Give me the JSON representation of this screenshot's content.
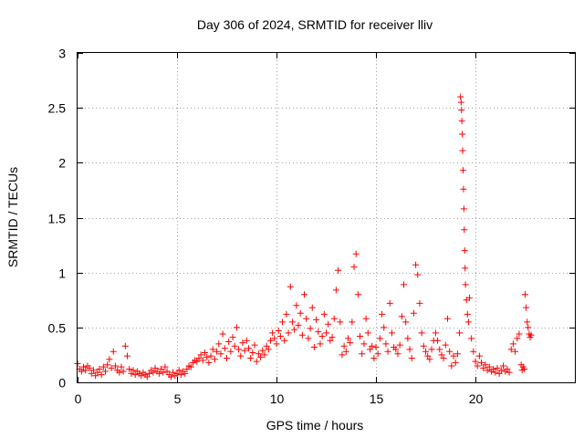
{
  "chart_data": {
    "type": "scatter",
    "title": "Day 306 of 2024, SRMTID for receiver lliv",
    "xlabel": "GPS time / hours",
    "ylabel": "SRMTID / TECUs",
    "xlim": [
      0,
      25
    ],
    "ylim": [
      0,
      3
    ],
    "xticks": [
      0,
      5,
      10,
      15,
      20
    ],
    "xtick_labels": [
      "0",
      "5",
      "10",
      "15",
      "20"
    ],
    "yticks": [
      0,
      0.5,
      1,
      1.5,
      2,
      2.5,
      3
    ],
    "ytick_labels": [
      "0",
      "0.5",
      "1",
      "1.5",
      "2",
      "2.5",
      "3"
    ],
    "grid": true,
    "marker": "+",
    "series": [
      {
        "name": "SRMTID",
        "color": "#ff0000",
        "points": [
          [
            0.0,
            0.17
          ],
          [
            0.1,
            0.12
          ],
          [
            0.2,
            0.1
          ],
          [
            0.3,
            0.14
          ],
          [
            0.4,
            0.11
          ],
          [
            0.5,
            0.15
          ],
          [
            0.6,
            0.13
          ],
          [
            0.7,
            0.08
          ],
          [
            0.8,
            0.11
          ],
          [
            0.9,
            0.06
          ],
          [
            1.0,
            0.09
          ],
          [
            1.1,
            0.12
          ],
          [
            1.2,
            0.07
          ],
          [
            1.3,
            0.14
          ],
          [
            1.4,
            0.1
          ],
          [
            1.5,
            0.16
          ],
          [
            1.6,
            0.21
          ],
          [
            1.7,
            0.13
          ],
          [
            1.8,
            0.28
          ],
          [
            1.9,
            0.15
          ],
          [
            2.0,
            0.11
          ],
          [
            2.1,
            0.09
          ],
          [
            2.2,
            0.14
          ],
          [
            2.3,
            0.1
          ],
          [
            2.4,
            0.33
          ],
          [
            2.5,
            0.24
          ],
          [
            2.6,
            0.12
          ],
          [
            2.7,
            0.08
          ],
          [
            2.8,
            0.11
          ],
          [
            2.9,
            0.07
          ],
          [
            3.0,
            0.1
          ],
          [
            3.1,
            0.08
          ],
          [
            3.2,
            0.06
          ],
          [
            3.3,
            0.09
          ],
          [
            3.4,
            0.07
          ],
          [
            3.5,
            0.05
          ],
          [
            3.6,
            0.08
          ],
          [
            3.7,
            0.11
          ],
          [
            3.8,
            0.09
          ],
          [
            3.9,
            0.13
          ],
          [
            4.0,
            0.1
          ],
          [
            4.1,
            0.08
          ],
          [
            4.2,
            0.12
          ],
          [
            4.3,
            0.09
          ],
          [
            4.4,
            0.14
          ],
          [
            4.5,
            0.1
          ],
          [
            4.6,
            0.07
          ],
          [
            4.7,
            0.05
          ],
          [
            4.8,
            0.09
          ],
          [
            4.9,
            0.06
          ],
          [
            5.0,
            0.08
          ],
          [
            5.1,
            0.11
          ],
          [
            5.2,
            0.07
          ],
          [
            5.3,
            0.1
          ],
          [
            5.4,
            0.08
          ],
          [
            5.5,
            0.12
          ],
          [
            5.6,
            0.15
          ],
          [
            5.7,
            0.14
          ],
          [
            5.8,
            0.18
          ],
          [
            5.9,
            0.2
          ],
          [
            6.0,
            0.19
          ],
          [
            6.1,
            0.22
          ],
          [
            6.2,
            0.25
          ],
          [
            6.3,
            0.2
          ],
          [
            6.4,
            0.27
          ],
          [
            6.5,
            0.23
          ],
          [
            6.6,
            0.18
          ],
          [
            6.7,
            0.24
          ],
          [
            6.8,
            0.3
          ],
          [
            6.9,
            0.21
          ],
          [
            7.0,
            0.28
          ],
          [
            7.1,
            0.35
          ],
          [
            7.2,
            0.26
          ],
          [
            7.3,
            0.44
          ],
          [
            7.4,
            0.31
          ],
          [
            7.5,
            0.22
          ],
          [
            7.6,
            0.37
          ],
          [
            7.7,
            0.28
          ],
          [
            7.8,
            0.41
          ],
          [
            7.9,
            0.33
          ],
          [
            8.0,
            0.5
          ],
          [
            8.1,
            0.3
          ],
          [
            8.2,
            0.24
          ],
          [
            8.3,
            0.36
          ],
          [
            8.4,
            0.29
          ],
          [
            8.5,
            0.38
          ],
          [
            8.6,
            0.31
          ],
          [
            8.7,
            0.22
          ],
          [
            8.8,
            0.27
          ],
          [
            8.9,
            0.34
          ],
          [
            9.0,
            0.19
          ],
          [
            9.1,
            0.26
          ],
          [
            9.2,
            0.23
          ],
          [
            9.3,
            0.29
          ],
          [
            9.4,
            0.25
          ],
          [
            9.5,
            0.33
          ],
          [
            9.6,
            0.3
          ],
          [
            9.7,
            0.38
          ],
          [
            9.8,
            0.45
          ],
          [
            9.9,
            0.4
          ],
          [
            10.0,
            0.35
          ],
          [
            10.1,
            0.47
          ],
          [
            10.2,
            0.42
          ],
          [
            10.3,
            0.55
          ],
          [
            10.4,
            0.38
          ],
          [
            10.5,
            0.62
          ],
          [
            10.6,
            0.45
          ],
          [
            10.7,
            0.87
          ],
          [
            10.8,
            0.55
          ],
          [
            10.9,
            0.48
          ],
          [
            11.0,
            0.7
          ],
          [
            11.1,
            0.52
          ],
          [
            11.2,
            0.63
          ],
          [
            11.3,
            0.43
          ],
          [
            11.4,
            0.8
          ],
          [
            11.5,
            0.58
          ],
          [
            11.6,
            0.4
          ],
          [
            11.7,
            0.49
          ],
          [
            11.8,
            0.68
          ],
          [
            11.9,
            0.32
          ],
          [
            12.0,
            0.57
          ],
          [
            12.1,
            0.46
          ],
          [
            12.2,
            0.35
          ],
          [
            12.3,
            0.42
          ],
          [
            12.4,
            0.62
          ],
          [
            12.5,
            0.45
          ],
          [
            12.6,
            0.53
          ],
          [
            12.7,
            0.38
          ],
          [
            12.8,
            0.41
          ],
          [
            12.9,
            0.58
          ],
          [
            13.0,
            0.84
          ],
          [
            13.1,
            1.02
          ],
          [
            13.2,
            0.55
          ],
          [
            13.3,
            0.25
          ],
          [
            13.4,
            0.33
          ],
          [
            13.5,
            0.28
          ],
          [
            13.6,
            0.4
          ],
          [
            13.7,
            0.36
          ],
          [
            13.8,
            0.55
          ],
          [
            13.9,
            1.05
          ],
          [
            14.0,
            1.17
          ],
          [
            14.1,
            0.8
          ],
          [
            14.2,
            0.42
          ],
          [
            14.3,
            0.26
          ],
          [
            14.4,
            0.35
          ],
          [
            14.5,
            0.58
          ],
          [
            14.6,
            0.45
          ],
          [
            14.7,
            0.3
          ],
          [
            14.8,
            0.33
          ],
          [
            14.9,
            0.22
          ],
          [
            15.0,
            0.32
          ],
          [
            15.1,
            0.26
          ],
          [
            15.2,
            0.4
          ],
          [
            15.3,
            0.62
          ],
          [
            15.4,
            0.5
          ],
          [
            15.5,
            0.35
          ],
          [
            15.6,
            0.28
          ],
          [
            15.7,
            0.72
          ],
          [
            15.8,
            0.45
          ],
          [
            15.9,
            0.32
          ],
          [
            16.0,
            0.3
          ],
          [
            16.1,
            0.26
          ],
          [
            16.2,
            0.34
          ],
          [
            16.3,
            0.6
          ],
          [
            16.4,
            0.89
          ],
          [
            16.5,
            0.55
          ],
          [
            16.6,
            0.4
          ],
          [
            16.7,
            0.3
          ],
          [
            16.8,
            0.22
          ],
          [
            16.9,
            0.63
          ],
          [
            17.0,
            1.07
          ],
          [
            17.1,
            0.98
          ],
          [
            17.2,
            0.72
          ],
          [
            17.3,
            0.45
          ],
          [
            17.4,
            0.33
          ],
          [
            17.5,
            0.28
          ],
          [
            17.6,
            0.24
          ],
          [
            17.7,
            0.21
          ],
          [
            17.8,
            0.3
          ],
          [
            17.9,
            0.38
          ],
          [
            18.0,
            0.45
          ],
          [
            18.1,
            0.38
          ],
          [
            18.2,
            0.3
          ],
          [
            18.3,
            0.25
          ],
          [
            18.4,
            0.22
          ],
          [
            18.5,
            0.34
          ],
          [
            18.6,
            0.58
          ],
          [
            18.7,
            0.28
          ],
          [
            18.8,
            0.15
          ],
          [
            18.9,
            0.24
          ],
          [
            19.0,
            0.18
          ],
          [
            19.1,
            0.26
          ],
          [
            19.2,
            0.45
          ],
          [
            19.25,
            2.6
          ],
          [
            19.28,
            2.55
          ],
          [
            19.3,
            2.48
          ],
          [
            19.32,
            2.38
          ],
          [
            19.34,
            2.26
          ],
          [
            19.36,
            2.11
          ],
          [
            19.38,
            1.93
          ],
          [
            19.4,
            1.76
          ],
          [
            19.42,
            1.58
          ],
          [
            19.44,
            1.39
          ],
          [
            19.46,
            1.2
          ],
          [
            19.48,
            1.04
          ],
          [
            19.5,
            0.89
          ],
          [
            19.55,
            0.75
          ],
          [
            19.6,
            0.62
          ],
          [
            19.65,
            0.55
          ],
          [
            19.7,
            0.77
          ],
          [
            19.8,
            0.4
          ],
          [
            19.9,
            0.28
          ],
          [
            20.0,
            0.19
          ],
          [
            20.1,
            0.15
          ],
          [
            20.2,
            0.24
          ],
          [
            20.3,
            0.18
          ],
          [
            20.4,
            0.13
          ],
          [
            20.5,
            0.16
          ],
          [
            20.6,
            0.11
          ],
          [
            20.7,
            0.14
          ],
          [
            20.8,
            0.1
          ],
          [
            20.9,
            0.12
          ],
          [
            21.0,
            0.09
          ],
          [
            21.1,
            0.13
          ],
          [
            21.2,
            0.08
          ],
          [
            21.3,
            0.11
          ],
          [
            21.4,
            0.15
          ],
          [
            21.5,
            0.1
          ],
          [
            21.6,
            0.12
          ],
          [
            21.7,
            0.09
          ],
          [
            21.8,
            0.3
          ],
          [
            21.9,
            0.35
          ],
          [
            22.0,
            0.28
          ],
          [
            22.1,
            0.4
          ],
          [
            22.2,
            0.44
          ],
          [
            22.3,
            0.16
          ],
          [
            22.35,
            0.11
          ],
          [
            22.4,
            0.14
          ],
          [
            22.45,
            0.12
          ],
          [
            22.5,
            0.8
          ],
          [
            22.55,
            0.68
          ],
          [
            22.6,
            0.55
          ],
          [
            22.65,
            0.5
          ],
          [
            22.7,
            0.44
          ],
          [
            22.75,
            0.41
          ],
          [
            22.8,
            0.43
          ]
        ]
      }
    ]
  }
}
